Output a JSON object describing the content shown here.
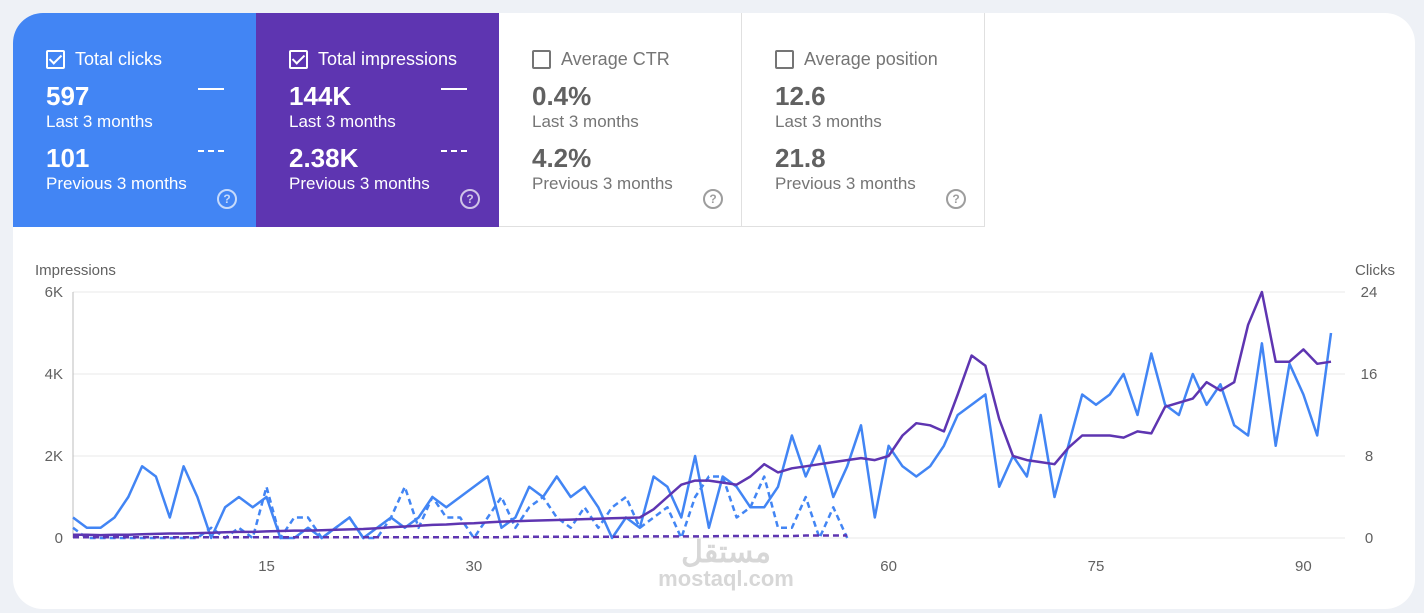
{
  "metrics": [
    {
      "label": "Total clicks",
      "checked": true,
      "value": "597",
      "period": "Last 3 months",
      "prev_value": "101",
      "prev_period": "Previous 3 months"
    },
    {
      "label": "Total impressions",
      "checked": true,
      "value": "144K",
      "period": "Last 3 months",
      "prev_value": "2.38K",
      "prev_period": "Previous 3 months"
    },
    {
      "label": "Average CTR",
      "checked": false,
      "value": "0.4%",
      "period": "Last 3 months",
      "prev_value": "4.2%",
      "prev_period": "Previous 3 months"
    },
    {
      "label": "Average position",
      "checked": false,
      "value": "12.6",
      "period": "Last 3 months",
      "prev_value": "21.8",
      "prev_period": "Previous 3 months"
    }
  ],
  "help_glyph": "?",
  "watermark": {
    "icon_text": "مستقل",
    "text": "mostaql.com"
  },
  "colors": {
    "clicks": "#4285f4",
    "impressions": "#5e35b1",
    "grid": "#e8e8e8",
    "axis_text": "#616161"
  },
  "chart_data": {
    "type": "line",
    "left_axis": {
      "label": "Impressions",
      "ticks": [
        0,
        2000,
        4000,
        6000
      ],
      "tick_labels": [
        "0",
        "2K",
        "4K",
        "6K"
      ],
      "range": [
        0,
        6000
      ]
    },
    "right_axis": {
      "label": "Clicks",
      "ticks": [
        0,
        8,
        16,
        24
      ],
      "tick_labels": [
        "0",
        "8",
        "16",
        "24"
      ],
      "range": [
        0,
        24
      ]
    },
    "x": {
      "range": [
        1,
        92
      ],
      "ticks": [
        15,
        30,
        60,
        75,
        90
      ],
      "tick_labels": [
        "15",
        "30",
        "60",
        "75",
        "90"
      ]
    },
    "grid": true,
    "series": [
      {
        "role": "clicks-current",
        "axis": "right",
        "style": "solid",
        "color": "#4285f4",
        "values": [
          2,
          1,
          1,
          2,
          4,
          7,
          6,
          2,
          7,
          4,
          0,
          3,
          4,
          3,
          4,
          0,
          0,
          1,
          0,
          1,
          2,
          0,
          1,
          2,
          1,
          2,
          4,
          3,
          4,
          5,
          6,
          1,
          2,
          5,
          4,
          6,
          4,
          5,
          3,
          0,
          2,
          1,
          6,
          5,
          2,
          8,
          1,
          6,
          5,
          3,
          3,
          5,
          10,
          6,
          9,
          4,
          7,
          11,
          2,
          9,
          7,
          6,
          7,
          9,
          12,
          13,
          14,
          5,
          8,
          6,
          12,
          4,
          9,
          14,
          13,
          14,
          16,
          12,
          18,
          13,
          12,
          16,
          13,
          15,
          11,
          10,
          19,
          9,
          17,
          14,
          10,
          20
        ]
      },
      {
        "role": "clicks-previous",
        "axis": "right",
        "style": "dashed",
        "color": "#4285f4",
        "values": [
          1,
          0,
          0,
          0,
          0,
          0,
          0,
          0,
          0,
          0,
          1,
          0,
          1,
          0,
          5,
          0,
          2,
          2,
          0,
          1,
          2,
          0,
          0,
          2,
          5,
          1,
          4,
          2,
          2,
          0,
          2,
          4,
          1,
          3,
          4,
          2,
          1,
          3,
          1,
          3,
          4,
          1,
          2,
          3,
          0,
          4,
          6,
          6,
          2,
          3,
          6,
          1,
          1,
          4,
          0,
          3,
          0
        ]
      },
      {
        "role": "impressions-current",
        "axis": "left",
        "style": "solid",
        "color": "#5e35b1",
        "values": [
          80,
          80,
          70,
          80,
          80,
          90,
          100,
          110,
          110,
          120,
          130,
          140,
          150,
          150,
          160,
          170,
          180,
          180,
          190,
          200,
          210,
          220,
          240,
          260,
          280,
          300,
          320,
          330,
          350,
          360,
          380,
          400,
          410,
          420,
          430,
          440,
          450,
          460,
          470,
          480,
          490,
          500,
          700,
          1000,
          1300,
          1400,
          1400,
          1350,
          1300,
          1500,
          1800,
          1600,
          1700,
          1750,
          1800,
          1850,
          1900,
          1950,
          1900,
          2000,
          2500,
          2800,
          2750,
          2600,
          3500,
          4450,
          4200,
          2900,
          2000,
          1900,
          1850,
          1800,
          2200,
          2500,
          2500,
          2500,
          2450,
          2600,
          2550,
          3200,
          3300,
          3400,
          3800,
          3600,
          3800,
          5200,
          6000,
          4300,
          4300,
          4600,
          4250,
          4300
        ]
      },
      {
        "role": "impressions-previous",
        "axis": "left",
        "style": "dashed",
        "color": "#5e35b1",
        "values": [
          20,
          20,
          20,
          20,
          20,
          20,
          20,
          20,
          20,
          20,
          20,
          20,
          20,
          20,
          20,
          20,
          20,
          20,
          20,
          20,
          20,
          20,
          20,
          20,
          20,
          20,
          20,
          20,
          20,
          20,
          20,
          20,
          30,
          30,
          30,
          30,
          30,
          30,
          30,
          30,
          30,
          40,
          40,
          40,
          40,
          40,
          40,
          50,
          50,
          50,
          50,
          50,
          50,
          60,
          60,
          60,
          60
        ]
      }
    ]
  }
}
